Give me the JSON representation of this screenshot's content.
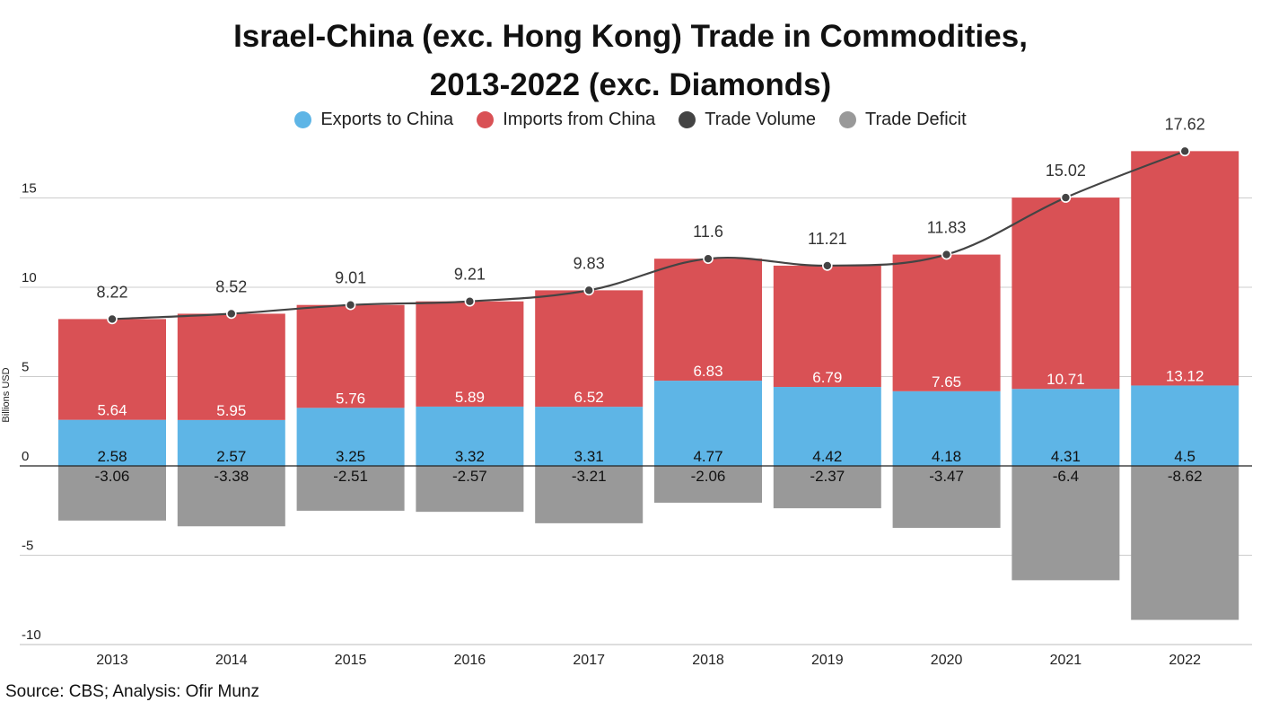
{
  "title_line1": "Israel-China (exc. Hong Kong) Trade in Commodities,",
  "title_line2": "2013-2022 (exc. Diamonds)",
  "source": "Source: CBS; Analysis: Ofir Munz",
  "legend": [
    {
      "name": "Exports to China",
      "color": "#5eb5e6"
    },
    {
      "name": "Imports from China",
      "color": "#d95155"
    },
    {
      "name": "Trade Volume",
      "color": "#444444"
    },
    {
      "name": "Trade Deficit",
      "color": "#999999"
    }
  ],
  "chart_data": {
    "type": "bar",
    "stacked": true,
    "ylabel": "Billions USD",
    "xlabel": "",
    "ylim": [
      -10,
      18
    ],
    "yticks": [
      -10,
      -5,
      0,
      5,
      10,
      15
    ],
    "grid": true,
    "legend_position": "top",
    "categories": [
      "2013",
      "2014",
      "2015",
      "2016",
      "2017",
      "2018",
      "2019",
      "2020",
      "2021",
      "2022"
    ],
    "series": [
      {
        "name": "Exports to China",
        "type": "bar",
        "color": "#5eb5e6",
        "values": [
          2.58,
          2.57,
          3.25,
          3.32,
          3.31,
          4.77,
          4.42,
          4.18,
          4.31,
          4.5
        ]
      },
      {
        "name": "Imports from China",
        "type": "bar",
        "color": "#d95155",
        "values": [
          5.64,
          5.95,
          5.76,
          5.89,
          6.52,
          6.83,
          6.79,
          7.65,
          10.71,
          13.12
        ]
      },
      {
        "name": "Trade Volume",
        "type": "line",
        "color": "#444444",
        "values": [
          8.22,
          8.52,
          9.01,
          9.21,
          9.83,
          11.6,
          11.21,
          11.83,
          15.02,
          17.62
        ]
      },
      {
        "name": "Trade Deficit",
        "type": "bar",
        "color": "#999999",
        "values": [
          -3.06,
          -3.38,
          -2.51,
          -2.57,
          -3.21,
          -2.06,
          -2.37,
          -3.47,
          -6.4,
          -8.62
        ]
      }
    ]
  }
}
